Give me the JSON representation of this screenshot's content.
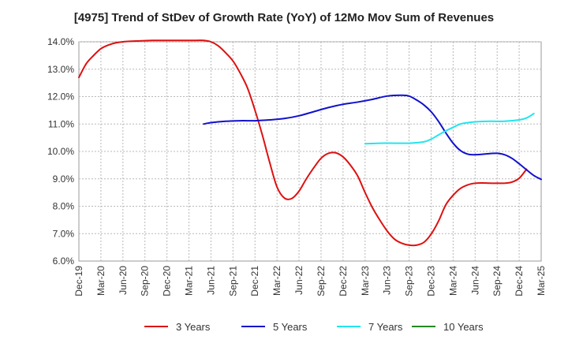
{
  "chart_data": {
    "type": "line",
    "title": "[4975]  Trend of StDev of Growth Rate (YoY) of 12Mo Mov Sum of Revenues",
    "xlabel": "",
    "ylabel": "",
    "ylim": [
      6.0,
      14.0
    ],
    "yticks": [
      "14.0%",
      "13.0%",
      "12.0%",
      "11.0%",
      "10.0%",
      "9.0%",
      "8.0%",
      "7.0%",
      "6.0%"
    ],
    "ytick_values": [
      14,
      13,
      12,
      11,
      10,
      9,
      8,
      7,
      6
    ],
    "xticks": [
      "Dec-19",
      "Mar-20",
      "Jun-20",
      "Sep-20",
      "Dec-20",
      "Mar-21",
      "Jun-21",
      "Sep-21",
      "Dec-21",
      "Mar-22",
      "Jun-22",
      "Sep-22",
      "Dec-22",
      "Mar-23",
      "Jun-23",
      "Sep-23",
      "Dec-23",
      "Mar-24",
      "Jun-24",
      "Sep-24",
      "Dec-24",
      "Mar-25"
    ],
    "x_month_range": [
      0,
      63
    ],
    "grid": true,
    "legend_position": "bottom",
    "series": [
      {
        "name": "3 Years",
        "color": "#dd1111",
        "points": [
          [
            0,
            12.7
          ],
          [
            1,
            13.2
          ],
          [
            2,
            13.5
          ],
          [
            3,
            13.75
          ],
          [
            4,
            13.88
          ],
          [
            5,
            13.96
          ],
          [
            6,
            14.0
          ],
          [
            8,
            14.03
          ],
          [
            10,
            14.05
          ],
          [
            12,
            14.05
          ],
          [
            14,
            14.05
          ],
          [
            16,
            14.05
          ],
          [
            17,
            14.05
          ],
          [
            18,
            14.0
          ],
          [
            19,
            13.85
          ],
          [
            20,
            13.6
          ],
          [
            21,
            13.3
          ],
          [
            22,
            12.85
          ],
          [
            23,
            12.3
          ],
          [
            24,
            11.5
          ],
          [
            25,
            10.6
          ],
          [
            26,
            9.6
          ],
          [
            27,
            8.7
          ],
          [
            28,
            8.3
          ],
          [
            29,
            8.28
          ],
          [
            30,
            8.55
          ],
          [
            31,
            9.0
          ],
          [
            32,
            9.4
          ],
          [
            33,
            9.75
          ],
          [
            34,
            9.93
          ],
          [
            35,
            9.95
          ],
          [
            36,
            9.8
          ],
          [
            37,
            9.5
          ],
          [
            38,
            9.1
          ],
          [
            39,
            8.5
          ],
          [
            40,
            7.95
          ],
          [
            41,
            7.5
          ],
          [
            42,
            7.1
          ],
          [
            43,
            6.8
          ],
          [
            44,
            6.65
          ],
          [
            45,
            6.58
          ],
          [
            46,
            6.58
          ],
          [
            47,
            6.68
          ],
          [
            48,
            6.98
          ],
          [
            49,
            7.45
          ],
          [
            50,
            8.05
          ],
          [
            51,
            8.4
          ],
          [
            52,
            8.65
          ],
          [
            53,
            8.78
          ],
          [
            54,
            8.84
          ],
          [
            55,
            8.85
          ],
          [
            56,
            8.84
          ],
          [
            57,
            8.84
          ],
          [
            58,
            8.84
          ],
          [
            59,
            8.88
          ],
          [
            60,
            9.02
          ],
          [
            61,
            9.35
          ]
        ]
      },
      {
        "name": "5 Years",
        "color": "#1111cc",
        "points": [
          [
            17,
            11.0
          ],
          [
            18,
            11.05
          ],
          [
            20,
            11.1
          ],
          [
            22,
            11.12
          ],
          [
            24,
            11.12
          ],
          [
            26,
            11.15
          ],
          [
            28,
            11.2
          ],
          [
            30,
            11.3
          ],
          [
            32,
            11.45
          ],
          [
            34,
            11.6
          ],
          [
            36,
            11.72
          ],
          [
            38,
            11.8
          ],
          [
            40,
            11.9
          ],
          [
            42,
            12.02
          ],
          [
            44,
            12.05
          ],
          [
            45,
            12.02
          ],
          [
            46,
            11.88
          ],
          [
            47,
            11.7
          ],
          [
            48,
            11.45
          ],
          [
            49,
            11.1
          ],
          [
            50,
            10.68
          ],
          [
            51,
            10.3
          ],
          [
            52,
            10.03
          ],
          [
            53,
            9.9
          ],
          [
            54,
            9.88
          ],
          [
            56,
            9.92
          ],
          [
            57,
            9.93
          ],
          [
            58,
            9.88
          ],
          [
            59,
            9.75
          ],
          [
            60,
            9.55
          ],
          [
            61,
            9.33
          ],
          [
            62,
            9.12
          ],
          [
            63,
            8.98
          ]
        ]
      },
      {
        "name": "7 Years",
        "color": "#22e5ee",
        "points": [
          [
            39,
            10.28
          ],
          [
            41,
            10.3
          ],
          [
            43,
            10.3
          ],
          [
            45,
            10.3
          ],
          [
            47,
            10.35
          ],
          [
            48,
            10.45
          ],
          [
            49,
            10.6
          ],
          [
            50,
            10.75
          ],
          [
            51,
            10.88
          ],
          [
            52,
            11.0
          ],
          [
            53,
            11.05
          ],
          [
            54,
            11.08
          ],
          [
            56,
            11.1
          ],
          [
            58,
            11.1
          ],
          [
            60,
            11.15
          ],
          [
            61,
            11.22
          ],
          [
            62,
            11.38
          ]
        ]
      },
      {
        "name": "10 Years",
        "color": "#228822",
        "points": []
      }
    ]
  }
}
